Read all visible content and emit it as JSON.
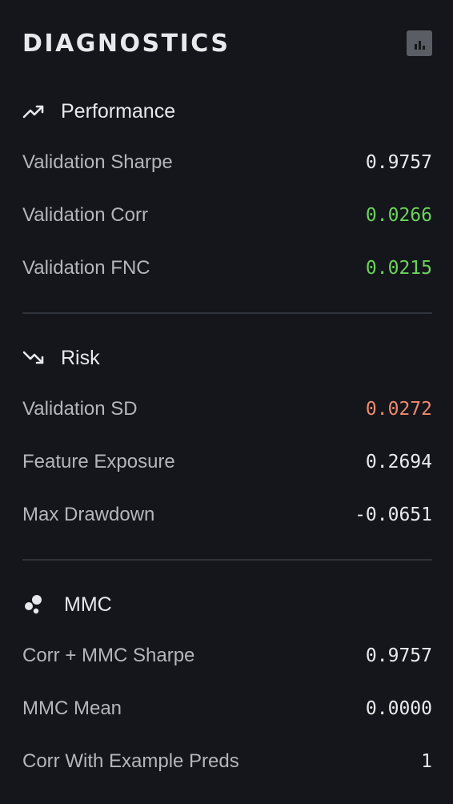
{
  "header": {
    "title": "DIAGNOSTICS",
    "chart_button_icon": "bar-chart-icon"
  },
  "sections": [
    {
      "title": "Performance",
      "icon": "trending-up-icon",
      "rows": [
        {
          "label": "Validation Sharpe",
          "value": "0.9757",
          "color": "#e8eaed"
        },
        {
          "label": "Validation Corr",
          "value": "0.0266",
          "color": "#6bd35a"
        },
        {
          "label": "Validation FNC",
          "value": "0.0215",
          "color": "#6bd35a"
        }
      ]
    },
    {
      "title": "Risk",
      "icon": "trending-down-icon",
      "rows": [
        {
          "label": "Validation SD",
          "value": "0.0272",
          "color": "#ef8a6f"
        },
        {
          "label": "Feature Exposure",
          "value": "0.2694",
          "color": "#e8eaed"
        },
        {
          "label": "Max Drawdown",
          "value": "-0.0651",
          "color": "#e8eaed"
        }
      ]
    },
    {
      "title": "MMC",
      "icon": "bubbles-icon",
      "rows": [
        {
          "label": "Corr + MMC Sharpe",
          "value": "0.9757",
          "color": "#e8eaed"
        },
        {
          "label": "MMC Mean",
          "value": "0.0000",
          "color": "#e8eaed"
        },
        {
          "label": "Corr With Example Preds",
          "value": "1",
          "color": "#e8eaed"
        }
      ]
    }
  ]
}
